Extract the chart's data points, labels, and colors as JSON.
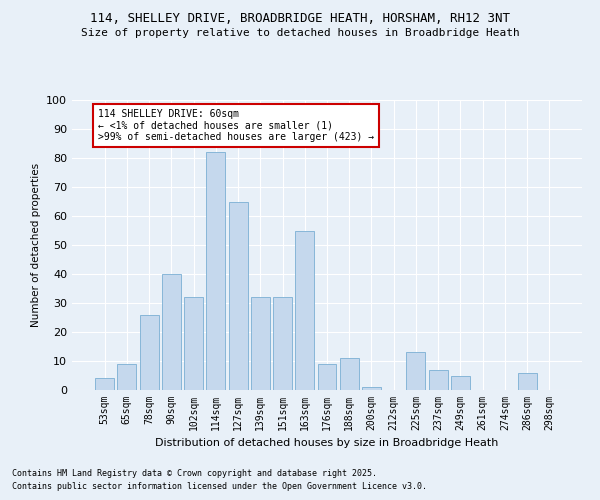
{
  "title1": "114, SHELLEY DRIVE, BROADBRIDGE HEATH, HORSHAM, RH12 3NT",
  "title2": "Size of property relative to detached houses in Broadbridge Heath",
  "xlabel": "Distribution of detached houses by size in Broadbridge Heath",
  "ylabel": "Number of detached properties",
  "categories": [
    "53sqm",
    "65sqm",
    "78sqm",
    "90sqm",
    "102sqm",
    "114sqm",
    "127sqm",
    "139sqm",
    "151sqm",
    "163sqm",
    "176sqm",
    "188sqm",
    "200sqm",
    "212sqm",
    "225sqm",
    "237sqm",
    "249sqm",
    "261sqm",
    "274sqm",
    "286sqm",
    "298sqm"
  ],
  "values": [
    4,
    9,
    26,
    40,
    32,
    82,
    65,
    32,
    32,
    55,
    9,
    11,
    1,
    0,
    13,
    7,
    5,
    0,
    0,
    6,
    0
  ],
  "bar_color": "#c5d8ed",
  "bar_edge_color": "#7aafd4",
  "annotation_title": "114 SHELLEY DRIVE: 60sqm",
  "annotation_line1": "← <1% of detached houses are smaller (1)",
  "annotation_line2": ">99% of semi-detached houses are larger (423) →",
  "footer1": "Contains HM Land Registry data © Crown copyright and database right 2025.",
  "footer2": "Contains public sector information licensed under the Open Government Licence v3.0.",
  "bg_color": "#e8f0f8",
  "annotation_box_color": "#ffffff",
  "annotation_box_edge": "#cc0000",
  "ylim": [
    0,
    100
  ],
  "yticks": [
    0,
    10,
    20,
    30,
    40,
    50,
    60,
    70,
    80,
    90,
    100
  ]
}
